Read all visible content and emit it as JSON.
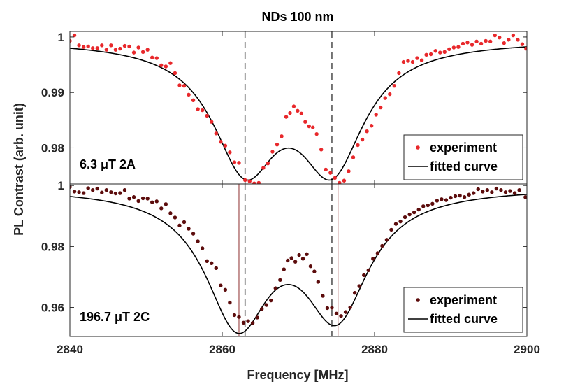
{
  "chart_data": {
    "type": "scatter",
    "title": "NDs 100 nm",
    "xlabel": "Frequency [MHz]",
    "ylabel": "PL Contrast (arb. unit)",
    "xlim": [
      2840,
      2900
    ],
    "x_ticks": [
      2840,
      2860,
      2880,
      2900
    ],
    "x_tick_labels": [
      "2840",
      "2860",
      "2880",
      "2900"
    ],
    "dashed_lines_x": [
      2863.0,
      2874.4
    ],
    "colors": {
      "exp_top": "#e8282b",
      "exp_bottom": "#5c0c0c",
      "fit": "#000000",
      "dashed": "#555555",
      "marker_lines": "#a05050"
    },
    "panels": [
      {
        "id": "top",
        "annotation": "6.3 μT 2A",
        "ylim": [
          0.9735,
          1.001
        ],
        "y_ticks": [
          0.98,
          0.99,
          1.0
        ],
        "y_tick_labels": [
          "0.98",
          "0.99",
          "1"
        ],
        "legend": [
          "experiment",
          "fitted curve"
        ],
        "fit": {
          "baseline": 0.9995,
          "dips": [
            {
              "center": 2863.0,
              "depth": 0.0215,
              "hwhm": 5.2
            },
            {
              "center": 2874.4,
              "depth": 0.0215,
              "hwhm": 5.2
            }
          ]
        },
        "series": [
          {
            "name": "experiment",
            "points": [
              [
                2840.0,
                0.9993
              ],
              [
                2840.6,
                1.0003
              ],
              [
                2841.2,
                0.9985
              ],
              [
                2841.8,
                0.9982
              ],
              [
                2842.4,
                0.9983
              ],
              [
                2843.0,
                0.998
              ],
              [
                2843.6,
                0.998
              ],
              [
                2844.2,
                0.9985
              ],
              [
                2844.8,
                0.9977
              ],
              [
                2845.4,
                0.9985
              ],
              [
                2846.0,
                0.9977
              ],
              [
                2846.6,
                0.9979
              ],
              [
                2847.2,
                0.9984
              ],
              [
                2847.8,
                0.9983
              ],
              [
                2848.4,
                0.9972
              ],
              [
                2849.0,
                0.9981
              ],
              [
                2849.6,
                0.9973
              ],
              [
                2850.2,
                0.9977
              ],
              [
                2850.8,
                0.9963
              ],
              [
                2851.4,
                0.9962
              ],
              [
                2852.0,
                0.9949
              ],
              [
                2852.6,
                0.9947
              ],
              [
                2853.2,
                0.9953
              ],
              [
                2853.8,
                0.9935
              ],
              [
                2854.4,
                0.9913
              ],
              [
                2855.0,
                0.9912
              ],
              [
                2855.6,
                0.9896
              ],
              [
                2856.2,
                0.9886
              ],
              [
                2856.8,
                0.987
              ],
              [
                2857.4,
                0.9868
              ],
              [
                2858.0,
                0.9858
              ],
              [
                2858.6,
                0.9847
              ],
              [
                2859.2,
                0.9826
              ],
              [
                2859.8,
                0.9811
              ],
              [
                2860.4,
                0.9804
              ],
              [
                2861.0,
                0.9792
              ],
              [
                2861.6,
                0.9774
              ],
              [
                2862.2,
                0.9773
              ],
              [
                2863.0,
                0.9742
              ],
              [
                2863.6,
                0.974
              ],
              [
                2864.2,
                0.9736
              ],
              [
                2864.8,
                0.9737
              ],
              [
                2865.4,
                0.9764
              ],
              [
                2866.0,
                0.9772
              ],
              [
                2866.6,
                0.9793
              ],
              [
                2867.2,
                0.9806
              ],
              [
                2867.8,
                0.9821
              ],
              [
                2868.4,
                0.9856
              ],
              [
                2868.9,
                0.9863
              ],
              [
                2869.4,
                0.9875
              ],
              [
                2869.9,
                0.9867
              ],
              [
                2870.4,
                0.9862
              ],
              [
                2870.9,
                0.9847
              ],
              [
                2871.4,
                0.9839
              ],
              [
                2871.9,
                0.9837
              ],
              [
                2872.4,
                0.9825
              ],
              [
                2873.0,
                0.9797
              ],
              [
                2873.6,
                0.9761
              ],
              [
                2874.2,
                0.9755
              ],
              [
                2874.8,
                0.9746
              ],
              [
                2875.4,
                0.9737
              ],
              [
                2876.0,
                0.9741
              ],
              [
                2876.6,
                0.9758
              ],
              [
                2877.2,
                0.9783
              ],
              [
                2877.8,
                0.9805
              ],
              [
                2878.4,
                0.9815
              ],
              [
                2879.0,
                0.983
              ],
              [
                2879.6,
                0.984
              ],
              [
                2880.2,
                0.986
              ],
              [
                2880.8,
                0.9873
              ],
              [
                2881.4,
                0.989
              ],
              [
                2882.0,
                0.9897
              ],
              [
                2882.6,
                0.9912
              ],
              [
                2883.2,
                0.9935
              ],
              [
                2883.8,
                0.9955
              ],
              [
                2884.4,
                0.9957
              ],
              [
                2885.0,
                0.9955
              ],
              [
                2885.6,
                0.9962
              ],
              [
                2886.2,
                0.9958
              ],
              [
                2886.8,
                0.9968
              ],
              [
                2887.4,
                0.9969
              ],
              [
                2888.0,
                0.9975
              ],
              [
                2888.6,
                0.9972
              ],
              [
                2889.2,
                0.9973
              ],
              [
                2889.8,
                0.9978
              ],
              [
                2890.4,
                0.9981
              ],
              [
                2891.0,
                0.9982
              ],
              [
                2891.6,
                0.9988
              ],
              [
                2892.2,
                0.999
              ],
              [
                2892.8,
                0.9986
              ],
              [
                2893.4,
                0.9992
              ],
              [
                2894.0,
                0.9988
              ],
              [
                2894.6,
                0.9993
              ],
              [
                2895.2,
                0.9992
              ],
              [
                2895.8,
                1.0003
              ],
              [
                2896.4,
                0.9999
              ],
              [
                2897.0,
                0.9989
              ],
              [
                2897.6,
                0.9995
              ],
              [
                2898.2,
                1.0003
              ],
              [
                2898.8,
                0.9995
              ],
              [
                2899.4,
                0.9987
              ],
              [
                2899.9,
                0.9979
              ]
            ]
          }
        ]
      },
      {
        "id": "bottom",
        "annotation": "196.7 μT 2C",
        "ylim": [
          0.9505,
          1.0005
        ],
        "y_ticks": [
          0.96,
          0.98,
          1.0
        ],
        "y_tick_labels": [
          "0.96",
          "0.98",
          "1"
        ],
        "legend": [
          "experiment",
          "fitted curve"
        ],
        "marker_lines_x": [
          2862.2,
          2875.2
        ],
        "fit": {
          "baseline": 0.9995,
          "dips": [
            {
              "center": 2862.0,
              "depth": 0.0425,
              "hwhm": 5.2
            },
            {
              "center": 2875.0,
              "depth": 0.0395,
              "hwhm": 5.2
            }
          ]
        },
        "series": [
          {
            "name": "experiment",
            "points": [
              [
                2840.0,
                0.9995
              ],
              [
                2840.6,
                0.998
              ],
              [
                2841.2,
                0.9978
              ],
              [
                2841.8,
                0.9975
              ],
              [
                2842.4,
                0.9991
              ],
              [
                2843.0,
                0.9985
              ],
              [
                2843.6,
                0.999
              ],
              [
                2844.2,
                0.9977
              ],
              [
                2844.8,
                0.9985
              ],
              [
                2845.4,
                0.9978
              ],
              [
                2846.0,
                0.9974
              ],
              [
                2846.6,
                0.9975
              ],
              [
                2847.2,
                0.9985
              ],
              [
                2847.8,
                0.9957
              ],
              [
                2848.4,
                0.9962
              ],
              [
                2849.0,
                0.9949
              ],
              [
                2849.6,
                0.9958
              ],
              [
                2850.2,
                0.9957
              ],
              [
                2850.8,
                0.9945
              ],
              [
                2851.4,
                0.9948
              ],
              [
                2852.0,
                0.9925
              ],
              [
                2852.6,
                0.9939
              ],
              [
                2853.2,
                0.9909
              ],
              [
                2853.8,
                0.9895
              ],
              [
                2854.4,
                0.9869
              ],
              [
                2855.0,
                0.988
              ],
              [
                2855.6,
                0.9858
              ],
              [
                2856.2,
                0.9842
              ],
              [
                2856.8,
                0.9817
              ],
              [
                2857.4,
                0.9794
              ],
              [
                2858.0,
                0.9752
              ],
              [
                2858.6,
                0.9745
              ],
              [
                2859.2,
                0.9729
              ],
              [
                2859.8,
                0.9672
              ],
              [
                2860.4,
                0.9658
              ],
              [
                2861.0,
                0.9616
              ],
              [
                2861.6,
                0.9575
              ],
              [
                2862.2,
                0.9569
              ],
              [
                2862.8,
                0.955
              ],
              [
                2863.4,
                0.9555
              ],
              [
                2864.0,
                0.9549
              ],
              [
                2864.6,
                0.9567
              ],
              [
                2865.2,
                0.9595
              ],
              [
                2865.8,
                0.9608
              ],
              [
                2866.4,
                0.9623
              ],
              [
                2867.0,
                0.9663
              ],
              [
                2867.6,
                0.969
              ],
              [
                2868.1,
                0.9725
              ],
              [
                2868.6,
                0.9754
              ],
              [
                2869.1,
                0.9762
              ],
              [
                2869.6,
                0.975
              ],
              [
                2870.1,
                0.9772
              ],
              [
                2870.6,
                0.976
              ],
              [
                2871.1,
                0.9775
              ],
              [
                2871.6,
                0.9735
              ],
              [
                2872.1,
                0.9718
              ],
              [
                2872.6,
                0.9684
              ],
              [
                2873.2,
                0.9638
              ],
              [
                2873.8,
                0.9598
              ],
              [
                2874.4,
                0.9599
              ],
              [
                2875.0,
                0.958
              ],
              [
                2875.6,
                0.9572
              ],
              [
                2876.2,
                0.9585
              ],
              [
                2876.8,
                0.96
              ],
              [
                2877.4,
                0.9648
              ],
              [
                2878.0,
                0.967
              ],
              [
                2878.6,
                0.9706
              ],
              [
                2879.2,
                0.9722
              ],
              [
                2879.8,
                0.976
              ],
              [
                2880.4,
                0.9778
              ],
              [
                2881.0,
                0.9802
              ],
              [
                2881.6,
                0.9822
              ],
              [
                2882.2,
                0.9855
              ],
              [
                2882.8,
                0.9874
              ],
              [
                2883.4,
                0.9882
              ],
              [
                2884.0,
                0.9896
              ],
              [
                2884.6,
                0.9905
              ],
              [
                2885.2,
                0.9912
              ],
              [
                2885.8,
                0.9921
              ],
              [
                2886.4,
                0.9932
              ],
              [
                2887.0,
                0.9935
              ],
              [
                2887.6,
                0.994
              ],
              [
                2888.2,
                0.995
              ],
              [
                2888.8,
                0.9955
              ],
              [
                2889.4,
                0.9952
              ],
              [
                2890.0,
                0.996
              ],
              [
                2890.6,
                0.9965
              ],
              [
                2891.2,
                0.9967
              ],
              [
                2891.8,
                0.9962
              ],
              [
                2892.4,
                0.997
              ],
              [
                2893.0,
                0.9975
              ],
              [
                2893.6,
                0.9988
              ],
              [
                2894.2,
                0.998
              ],
              [
                2894.8,
                0.9985
              ],
              [
                2895.4,
                0.9978
              ],
              [
                2896.0,
                0.999
              ],
              [
                2896.6,
                0.9985
              ],
              [
                2897.2,
                0.9978
              ],
              [
                2897.8,
                0.9982
              ],
              [
                2898.4,
                0.9975
              ],
              [
                2899.0,
                0.9985
              ],
              [
                2899.8,
                0.9962
              ]
            ]
          }
        ]
      }
    ]
  }
}
